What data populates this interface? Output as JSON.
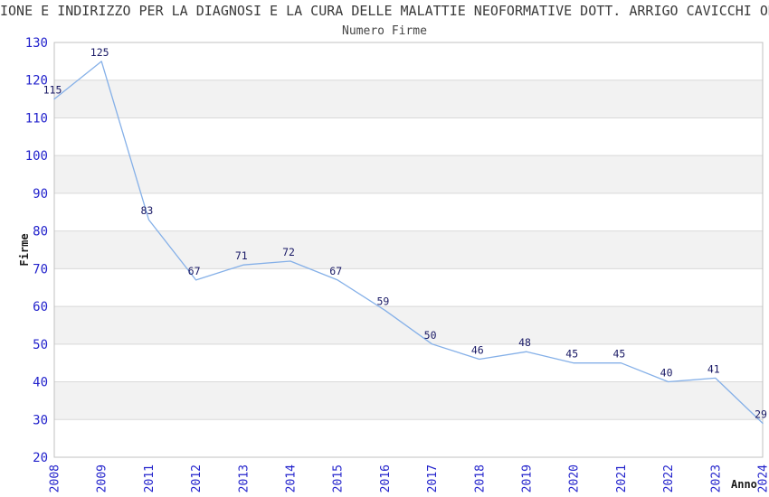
{
  "header": {
    "title": "IONE E INDIRIZZO PER LA DIAGNOSI E LA CURA DELLE MALATTIE NEOFORMATIVE DOTT. ARRIGO CAVICCHI ODV",
    "subtitle": "Numero Firme"
  },
  "chart_data": {
    "type": "line",
    "title": "Numero Firme",
    "categories": [
      "2008",
      "2009",
      "2011",
      "2012",
      "2013",
      "2014",
      "2015",
      "2016",
      "2017",
      "2018",
      "2019",
      "2020",
      "2021",
      "2022",
      "2023",
      "2024"
    ],
    "values": [
      115,
      125,
      83,
      67,
      71,
      72,
      67,
      59,
      50,
      46,
      48,
      45,
      45,
      40,
      41,
      29
    ],
    "xlabel": "Anno",
    "ylabel": "Firme",
    "ylim": [
      20,
      130
    ],
    "ytick_step": 10,
    "yticks": [
      20,
      30,
      40,
      50,
      60,
      70,
      80,
      90,
      100,
      110,
      120,
      130
    ],
    "grid": true,
    "legend": "none",
    "colors": {
      "line": "#85b0e8",
      "tick_label": "#2323cc",
      "value_label": "#1a1a66",
      "band_even": "#ffffff",
      "band_odd": "#f2f2f2",
      "gridline": "#d9d9d9",
      "plot_border": "#c0c0c0",
      "axis_title": "#1a1a1a"
    }
  }
}
